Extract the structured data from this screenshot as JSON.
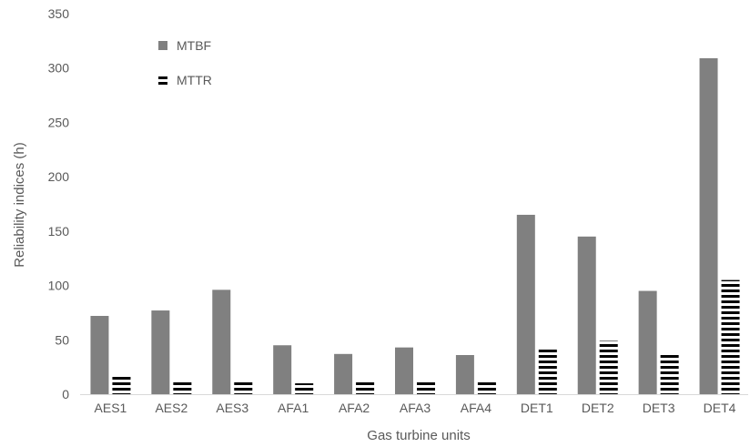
{
  "chart_data": {
    "type": "bar",
    "title": "",
    "xlabel": "Gas turbine units",
    "ylabel": "Reliability indices (h)",
    "ylim": [
      0,
      350
    ],
    "yticks": [
      0,
      50,
      100,
      150,
      200,
      250,
      300,
      350
    ],
    "grid": false,
    "legend_position": "top-left",
    "categories": [
      "AES1",
      "AES2",
      "AES3",
      "AFA1",
      "AFA2",
      "AFA3",
      "AFA4",
      "DET1",
      "DET2",
      "DET3",
      "DET4"
    ],
    "series": [
      {
        "name": "MTBF",
        "color": "#808080",
        "pattern": "solid",
        "values": [
          72,
          77,
          96,
          45,
          37,
          43,
          36,
          165,
          145,
          95,
          309
        ]
      },
      {
        "name": "MTTR",
        "color": "#000000",
        "pattern": "horizontal-stripes",
        "values": [
          16,
          11,
          11,
          10,
          11,
          11,
          11,
          43,
          49,
          36,
          105
        ]
      }
    ]
  }
}
